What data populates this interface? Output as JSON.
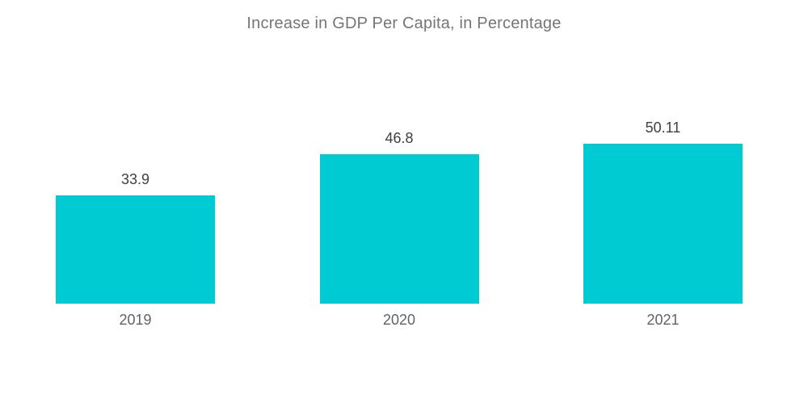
{
  "chart_data": {
    "type": "bar",
    "title": "Increase in GDP Per Capita, in Percentage",
    "categories": [
      "2019",
      "2020",
      "2021"
    ],
    "values": [
      33.9,
      46.8,
      50.11
    ],
    "value_labels": [
      "33.9",
      "46.8",
      "50.11"
    ],
    "xlabel": "",
    "ylabel": "",
    "ylim": [
      0,
      50.11
    ],
    "grid": false,
    "legend": false,
    "bar_color": "#00CBD2",
    "title_color": "#757575",
    "value_label_color": "#3d4043",
    "category_label_color": "#5f6368",
    "background_color": "#ffffff"
  }
}
